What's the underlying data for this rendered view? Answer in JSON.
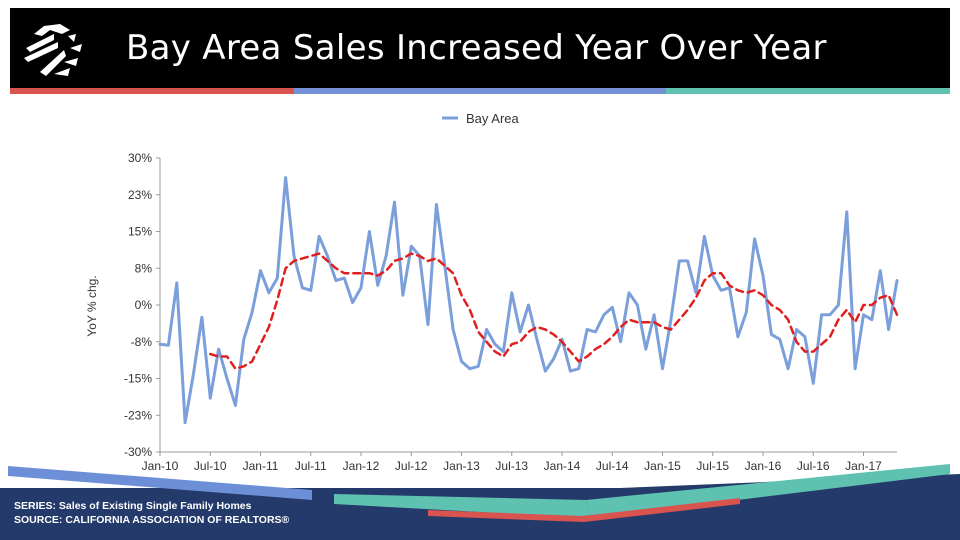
{
  "header": {
    "title": "Bay Area Sales Increased Year Over Year"
  },
  "colors": {
    "header_bg": "#000000",
    "stripe_red": "#d9534f",
    "stripe_blue": "#7592d9",
    "stripe_teal": "#5fc1b0",
    "series_line": "#7b9fdb",
    "moving_avg": "#e02020",
    "footer_navy": "#243a6a",
    "footer_blue": "#6d8fd8",
    "footer_teal": "#5fc1b0"
  },
  "footer": {
    "series": "SERIES: Sales of Existing Single Family Homes",
    "source": "SOURCE:  CALIFORNIA ASSOCIATION OF REALTORS®"
  },
  "chart_data": {
    "type": "line",
    "ylabel": "YoY % chg.",
    "xlabel": "",
    "ylim": [
      -30,
      30
    ],
    "y_ticks": [
      "30%",
      "23%",
      "15%",
      "8%",
      "0%",
      "-8%",
      "-15%",
      "-23%",
      "-30%"
    ],
    "x_start": "Jan-10",
    "x_ticks": [
      "Jan-10",
      "Jul-10",
      "Jan-11",
      "Jul-11",
      "Jan-12",
      "Jul-12",
      "Jan-13",
      "Jul-13",
      "Jan-14",
      "Jul-14",
      "Jan-15",
      "Jul-15",
      "Jan-16",
      "Jul-16",
      "Jan-17"
    ],
    "legend": {
      "position": "top",
      "entries": [
        "Bay Area"
      ]
    },
    "grid": false,
    "series": [
      {
        "name": "Bay Area",
        "values": [
          -8,
          -8.2,
          4.5,
          -24,
          -14,
          -2.5,
          -19,
          -9,
          -15,
          -20.5,
          -7,
          -1.5,
          7,
          2.5,
          5.5,
          26,
          10,
          3.5,
          3,
          14,
          10,
          5,
          5.5,
          0.5,
          3.5,
          15,
          4,
          10,
          21,
          2,
          12,
          10,
          -4,
          20.5,
          8,
          -5,
          -11.5,
          -13,
          -12.5,
          -5,
          -8,
          -9.5,
          2.5,
          -5.5,
          0,
          -7,
          -13.5,
          -11,
          -7,
          -13.5,
          -13,
          -5,
          -5.5,
          -2,
          -0.5,
          -7.5,
          2.5,
          0,
          -9,
          -2,
          -13,
          -3,
          9,
          9,
          2.5,
          14,
          6,
          3,
          3.5,
          -6.5,
          -1.5,
          13.5,
          6,
          -6,
          -7,
          -13,
          -5,
          -6.5,
          -16,
          -2,
          -2,
          0,
          19,
          -13,
          -2,
          -3,
          7,
          -5,
          5
        ]
      },
      {
        "name": "",
        "values": [
          null,
          null,
          null,
          null,
          null,
          null,
          -10,
          -10.5,
          -10.5,
          -13,
          -12.5,
          -11.5,
          -8,
          -4.5,
          1,
          7.5,
          9,
          9.5,
          10,
          10.5,
          9,
          7.5,
          6.5,
          6.5,
          6.5,
          6.5,
          6,
          7,
          9,
          9.5,
          10.5,
          10,
          9,
          9.5,
          8,
          6.5,
          2,
          -1,
          -5.5,
          -7.5,
          -9.5,
          -10.5,
          -8,
          -7.5,
          -5.5,
          -4.5,
          -5,
          -6,
          -7.5,
          -9.5,
          -11.5,
          -10.5,
          -9,
          -8,
          -6.5,
          -4.5,
          -3,
          -3.5,
          -3.5,
          -3.5,
          -4.5,
          -5,
          -3,
          -1,
          1.5,
          5,
          6.5,
          6.5,
          4,
          3,
          2.5,
          3,
          2,
          0,
          -1,
          -3,
          -7.5,
          -9.5,
          -9.5,
          -8,
          -6.5,
          -3,
          -1,
          -3.5,
          0,
          0,
          1.5,
          2,
          -2
        ]
      }
    ]
  }
}
